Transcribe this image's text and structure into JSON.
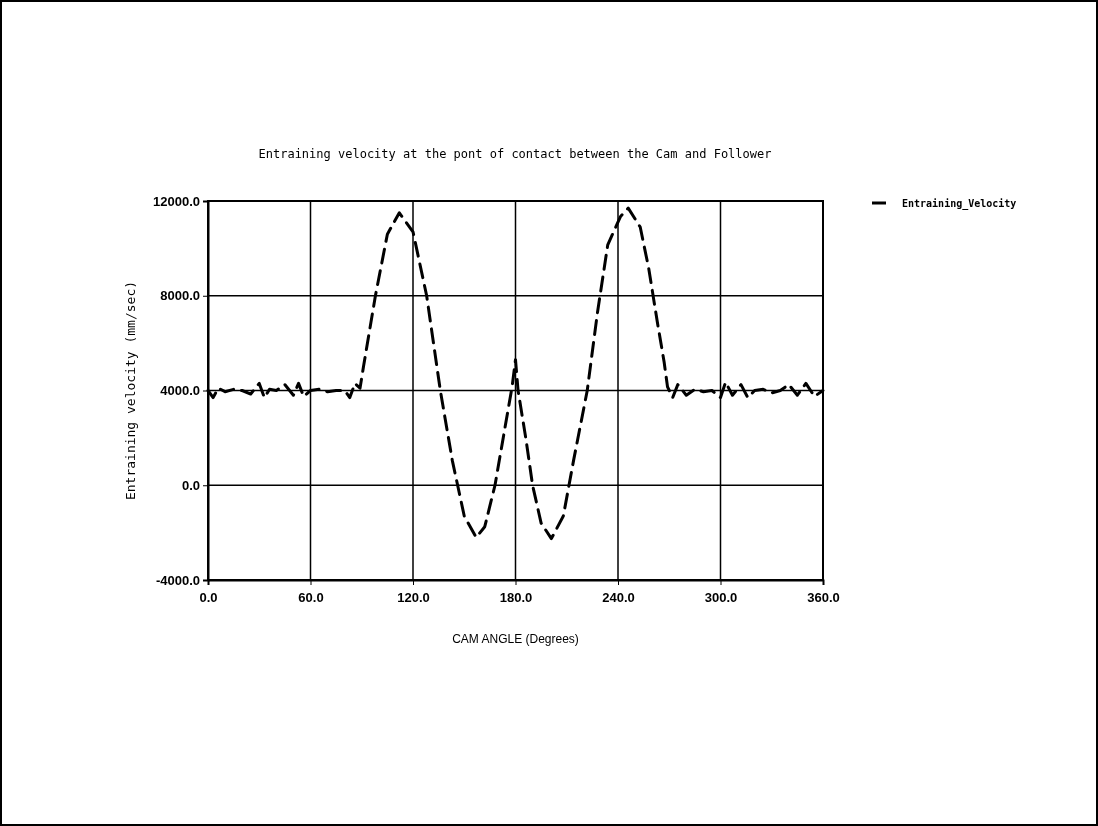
{
  "chart_data": {
    "type": "line",
    "title": "Entraining velocity at the pont of contact between the Cam and Follower",
    "xlabel": "CAM ANGLE (Degrees)",
    "ylabel": "Entraining velocity (mm/sec)",
    "x": [
      0,
      3,
      6,
      10,
      15,
      20,
      25,
      30,
      33,
      36,
      40,
      45,
      50,
      53,
      56,
      60,
      65,
      70,
      75,
      80,
      83,
      86,
      89,
      91,
      98,
      105,
      112,
      120,
      128,
      136,
      143,
      150,
      157,
      162,
      168,
      174,
      178,
      180,
      181.5,
      186,
      190,
      195,
      201,
      208,
      214,
      222,
      228,
      234,
      241.5,
      246,
      253,
      258,
      263,
      267,
      269,
      272,
      275,
      280,
      285,
      290,
      295,
      300,
      303,
      307,
      312,
      316,
      320,
      325,
      330,
      335,
      340,
      345,
      350,
      355,
      360
    ],
    "series": [
      {
        "name": "Entraining_Velocity",
        "color": "#000000",
        "values": [
          4000,
          3700,
          4100,
          3950,
          4050,
          4000,
          3850,
          4300,
          3700,
          4050,
          4000,
          4250,
          3800,
          4300,
          3750,
          4000,
          4050,
          3950,
          4000,
          4000,
          3700,
          4300,
          4100,
          5000,
          8000,
          10600,
          11500,
          10700,
          8000,
          4000,
          1050,
          -1300,
          -2200,
          -1750,
          0,
          2500,
          4150,
          5300,
          4000,
          2000,
          0,
          -1600,
          -2250,
          -1300,
          1050,
          4000,
          7300,
          10150,
          11350,
          11700,
          10900,
          9150,
          6900,
          5200,
          4150,
          3700,
          4250,
          3800,
          4050,
          3950,
          4000,
          3700,
          4350,
          3800,
          4250,
          3700,
          4000,
          4050,
          3900,
          4000,
          4250,
          3800,
          4300,
          3750,
          4000
        ]
      }
    ],
    "xlim": [
      0,
      360
    ],
    "xticks": [
      {
        "value": 0,
        "label": "0.0"
      },
      {
        "value": 60,
        "label": "60.0"
      },
      {
        "value": 120,
        "label": "120.0"
      },
      {
        "value": 180,
        "label": "180.0"
      },
      {
        "value": 240,
        "label": "240.0"
      },
      {
        "value": 300,
        "label": "300.0"
      },
      {
        "value": 360,
        "label": "360.0"
      }
    ],
    "ylim": [
      -4000,
      12000
    ],
    "yticks": [
      {
        "value": -4000,
        "label": "-4000.0"
      },
      {
        "value": 0,
        "label": "0.0"
      },
      {
        "value": 4000,
        "label": "4000.0"
      },
      {
        "value": 8000,
        "label": "8000.0"
      },
      {
        "value": 12000,
        "label": "12000.0"
      }
    ],
    "grid": true,
    "legend": "top right",
    "line_style": "dashed",
    "marker": "none"
  }
}
